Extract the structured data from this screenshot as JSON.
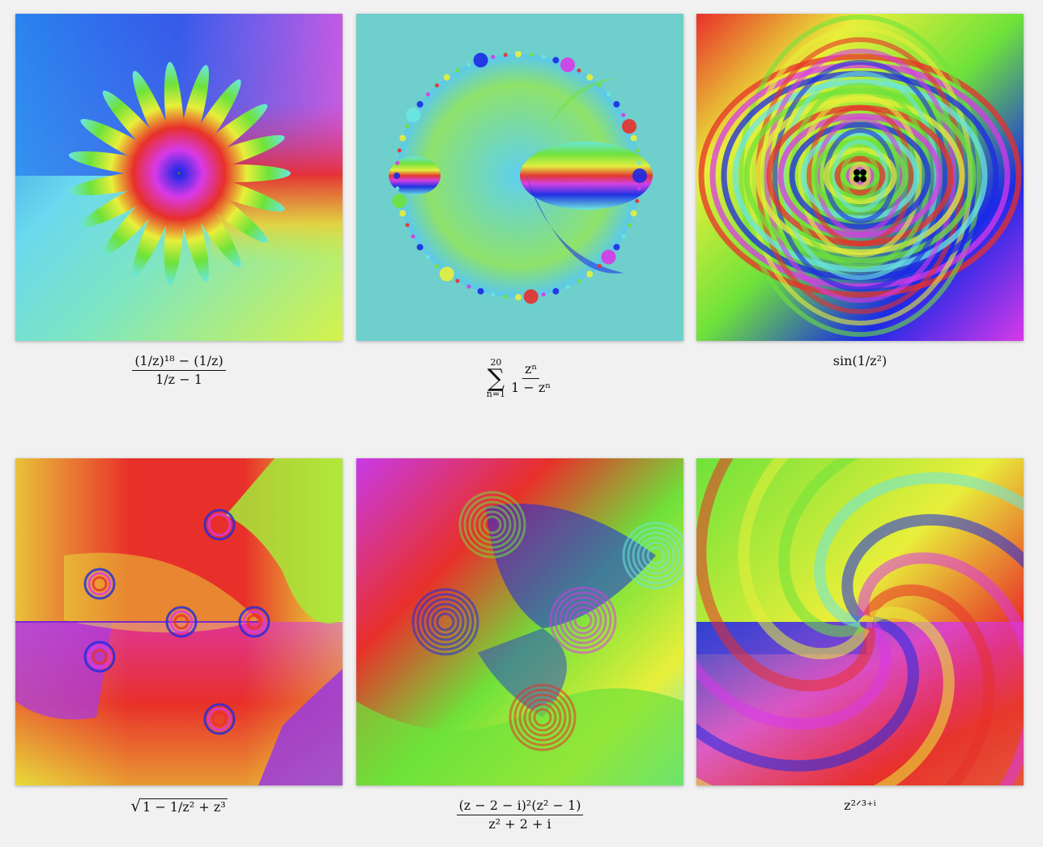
{
  "plots": [
    {
      "id": "plot-1",
      "caption": {
        "numerator": "(1/z)¹⁸ − (1/z)",
        "denominator": "1/z − 1"
      }
    },
    {
      "id": "plot-2",
      "caption": {
        "sum_upper": "20",
        "sum_lower": "n=1",
        "numerator": "zⁿ",
        "denominator": "1 − zⁿ"
      }
    },
    {
      "id": "plot-3",
      "caption": {
        "text": "sin(1/z²)"
      }
    },
    {
      "id": "plot-4",
      "caption": {
        "radicand": "1 − 1/z² + z³"
      }
    },
    {
      "id": "plot-5",
      "caption": {
        "numerator": "(z − 2 − i)²(z² − 1)",
        "denominator": "z² + 2 + i"
      }
    },
    {
      "id": "plot-6",
      "caption": {
        "text": "z²ᐟ³⁺ⁱ"
      }
    }
  ],
  "colors": {
    "background": "#f1f1f1",
    "red": "#e8302a",
    "yellow": "#e8ef3a",
    "green": "#6ee23a",
    "cyan": "#6ae6e0",
    "blue": "#1b2ae6",
    "magenta": "#d839e8"
  }
}
